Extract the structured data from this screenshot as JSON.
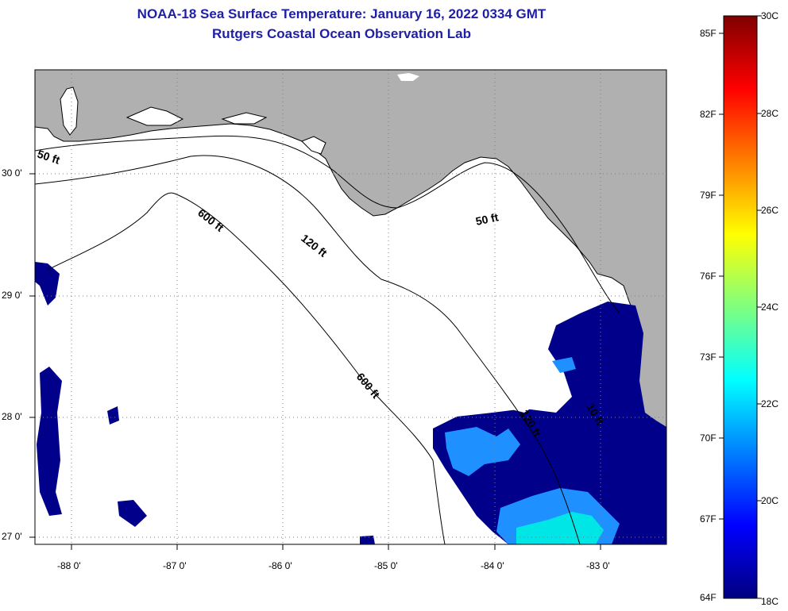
{
  "title_line1": "NOAA-18 Sea Surface Temperature:  January 16, 2022 0334 GMT",
  "title_line2": "Rutgers Coastal Ocean Observation Lab",
  "map": {
    "lat_ticks": [
      "30 0'",
      "29 0'",
      "28 0'",
      "27 0'"
    ],
    "lon_ticks": [
      "-88 0'",
      "-87 0'",
      "-86 0'",
      "-85 0'",
      "-84 0'",
      "-83 0'"
    ],
    "contour_labels": [
      "50 ft",
      "600 ft",
      "120 ft",
      "50 ft",
      "600 ft",
      "120 ft",
      "10 ft"
    ],
    "colors": {
      "land": "#b0b0b0",
      "water_no_data": "#ffffff",
      "sst_cold": "#00008b",
      "sst_mid": "#1e90ff",
      "sst_warm": "#00e5e5"
    }
  },
  "colorbar": {
    "fahrenheit": [
      "85F",
      "82F",
      "79F",
      "76F",
      "73F",
      "70F",
      "67F",
      "64F"
    ],
    "celsius": [
      "30C",
      "28C",
      "26C",
      "24C",
      "22C",
      "20C",
      "18C"
    ],
    "range_c": [
      18,
      30
    ],
    "range_f": [
      64,
      86
    ]
  }
}
